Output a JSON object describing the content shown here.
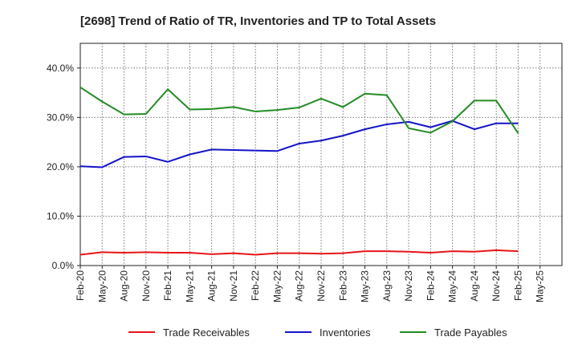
{
  "chart_data": {
    "type": "line",
    "title": "[2698]  Trend of Ratio of TR, Inventories and TP to Total Assets",
    "xlabel": "",
    "ylabel": "",
    "ylim": [
      0,
      45
    ],
    "yticks": [
      0,
      10,
      20,
      30,
      40
    ],
    "ytick_labels": [
      "0.0%",
      "10.0%",
      "20.0%",
      "30.0%",
      "40.0%"
    ],
    "x_axis_labels": [
      "Feb-20",
      "May-20",
      "Aug-20",
      "Nov-20",
      "Feb-21",
      "May-21",
      "Aug-21",
      "Nov-21",
      "Feb-22",
      "May-22",
      "Aug-22",
      "Nov-22",
      "Feb-23",
      "May-23",
      "Aug-23",
      "Nov-23",
      "Feb-24",
      "May-24",
      "Aug-24",
      "Nov-24",
      "Feb-25",
      "May-25"
    ],
    "x": [
      "Feb-20",
      "May-20",
      "Aug-20",
      "Nov-20",
      "Feb-21",
      "May-21",
      "Aug-21",
      "Nov-21",
      "Feb-22",
      "May-22",
      "Aug-22",
      "Nov-22",
      "Feb-23",
      "May-23",
      "Aug-23",
      "Nov-23",
      "Feb-24",
      "May-24",
      "Aug-24",
      "Nov-24",
      "Feb-25"
    ],
    "grid": true,
    "legend_position": "bottom",
    "series": [
      {
        "name": "Trade Receivables",
        "color": "#e8141a",
        "values": [
          2.2,
          2.7,
          2.6,
          2.7,
          2.6,
          2.6,
          2.3,
          2.5,
          2.2,
          2.5,
          2.5,
          2.4,
          2.5,
          2.9,
          2.9,
          2.8,
          2.6,
          2.9,
          2.8,
          3.1,
          2.9
        ]
      },
      {
        "name": "Inventories",
        "color": "#1414c8",
        "values": [
          20.1,
          19.9,
          22.0,
          22.1,
          21.0,
          22.5,
          23.5,
          23.4,
          23.3,
          23.2,
          24.7,
          25.3,
          26.3,
          27.6,
          28.6,
          29.1,
          28.0,
          29.3,
          27.6,
          28.8,
          28.8
        ]
      },
      {
        "name": "Trade Payables",
        "color": "#238c23",
        "values": [
          36.1,
          33.2,
          30.6,
          30.7,
          35.7,
          31.6,
          31.7,
          32.1,
          31.2,
          31.5,
          32.0,
          33.8,
          32.1,
          34.8,
          34.5,
          27.8,
          26.9,
          29.2,
          33.4,
          33.4,
          26.8
        ]
      }
    ]
  }
}
